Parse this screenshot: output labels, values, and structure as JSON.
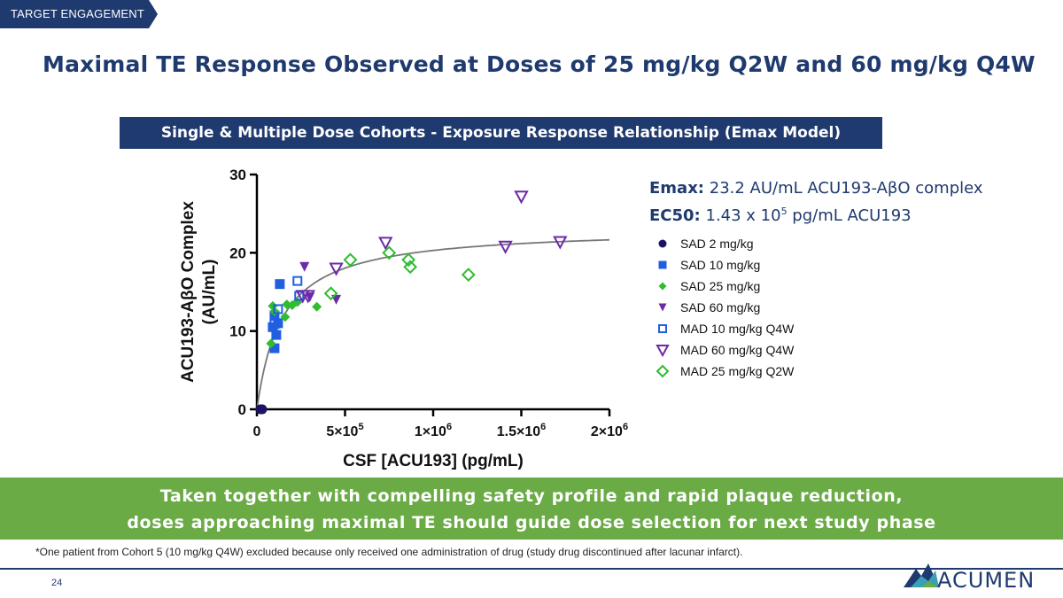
{
  "section_tag": "TARGET ENGAGEMENT",
  "title": "Maximal TE Response Observed at Doses of 25 mg/kg Q2W and 60 mg/kg Q4W",
  "subtitle_bar": "Single & Multiple Dose Cohorts  -  Exposure Response Relationship  (Emax Model)",
  "stats": {
    "emax_label": "Emax:",
    "emax_value": " 23.2 AU/mL ACU193-AβO complex",
    "ec50_label": "EC50:",
    "ec50_value_pre": " 1.43 x 10",
    "ec50_exp": "5",
    "ec50_value_post": " pg/mL ACU193"
  },
  "banner": {
    "line1": "Taken together with compelling safety profile and rapid plaque reduction,",
    "line2": "doses approaching maximal TE should guide dose selection for next study phase"
  },
  "footnote": "*One patient from Cohort 5 (10 mg/kg Q4W) excluded because only received one administration of drug (study drug discontinued after lacunar infarct).",
  "page_number": "24",
  "logo_text": "ACUMEN",
  "colors": {
    "navy": "#1f3a6e",
    "green": "#6aab46",
    "blue": "#1f5fe0",
    "purple": "#6b2aa8",
    "brightgreen": "#2ebd2e",
    "darknavy": "#1b1464"
  },
  "chart_data": {
    "type": "scatter",
    "xlabel": "CSF [ACU193] (pg/mL)",
    "ylabel_line1": "ACU193-AβO Complex",
    "ylabel_line2": "(AU/mL)",
    "xlim": [
      0,
      2000000
    ],
    "ylim": [
      0,
      30
    ],
    "x_ticks": [
      {
        "value": 0,
        "base": "0",
        "exp": ""
      },
      {
        "value": 500000,
        "base": "5×10",
        "exp": "5"
      },
      {
        "value": 1000000,
        "base": "1×10",
        "exp": "6"
      },
      {
        "value": 1500000,
        "base": "1.5×10",
        "exp": "6"
      },
      {
        "value": 2000000,
        "base": "2×10",
        "exp": "6"
      }
    ],
    "y_ticks": [
      0,
      10,
      20,
      30
    ],
    "fit": {
      "model": "Emax",
      "emax": 23.2,
      "ec50": 143000
    },
    "series": [
      {
        "name": "SAD 2 mg/kg",
        "marker": "circle",
        "color": "#1b1464",
        "points": [
          [
            20000,
            0.0
          ],
          [
            30000,
            0.0
          ]
        ]
      },
      {
        "name": "SAD 10 mg/kg",
        "marker": "square",
        "color": "#1f5fe0",
        "points": [
          [
            100000,
            12.0
          ],
          [
            130000,
            16.0
          ],
          [
            110000,
            9.5
          ],
          [
            100000,
            7.8
          ],
          [
            120000,
            11.0
          ],
          [
            90000,
            10.5
          ]
        ]
      },
      {
        "name": "SAD 25 mg/kg",
        "marker": "diamond",
        "color": "#2ebd2e",
        "points": [
          [
            80000,
            8.4
          ],
          [
            90000,
            13.2
          ],
          [
            160000,
            11.8
          ],
          [
            170000,
            13.4
          ],
          [
            200000,
            13.3
          ],
          [
            230000,
            13.7
          ],
          [
            340000,
            13.1
          ],
          [
            100000,
            12.5
          ]
        ]
      },
      {
        "name": "SAD 60 mg/kg",
        "marker": "tri-filled",
        "color": "#6b2aa8",
        "points": [
          [
            270000,
            18.2
          ],
          [
            450000,
            14.0
          ],
          [
            300000,
            14.3
          ]
        ]
      },
      {
        "name": "MAD 10 mg/kg Q4W",
        "marker": "square-open",
        "color": "#1f5fe0",
        "points": [
          [
            230000,
            16.4
          ],
          [
            240000,
            14.5
          ],
          [
            120000,
            12.8
          ],
          [
            100000,
            10.9
          ]
        ]
      },
      {
        "name": "MAD 60 mg/kg Q4W",
        "marker": "tri-open",
        "color": "#6b2aa8",
        "points": [
          [
            450000,
            18.0
          ],
          [
            730000,
            21.3
          ],
          [
            1500000,
            27.2
          ],
          [
            1410000,
            20.8
          ],
          [
            1720000,
            21.4
          ],
          [
            290000,
            14.5
          ],
          [
            260000,
            14.5
          ]
        ]
      },
      {
        "name": "MAD 25 mg/kg Q2W",
        "marker": "diamond-open",
        "color": "#2ebd2e",
        "points": [
          [
            530000,
            19.1
          ],
          [
            750000,
            20.0
          ],
          [
            860000,
            19.1
          ],
          [
            870000,
            18.2
          ],
          [
            1200000,
            17.2
          ],
          [
            420000,
            14.8
          ]
        ]
      }
    ]
  }
}
